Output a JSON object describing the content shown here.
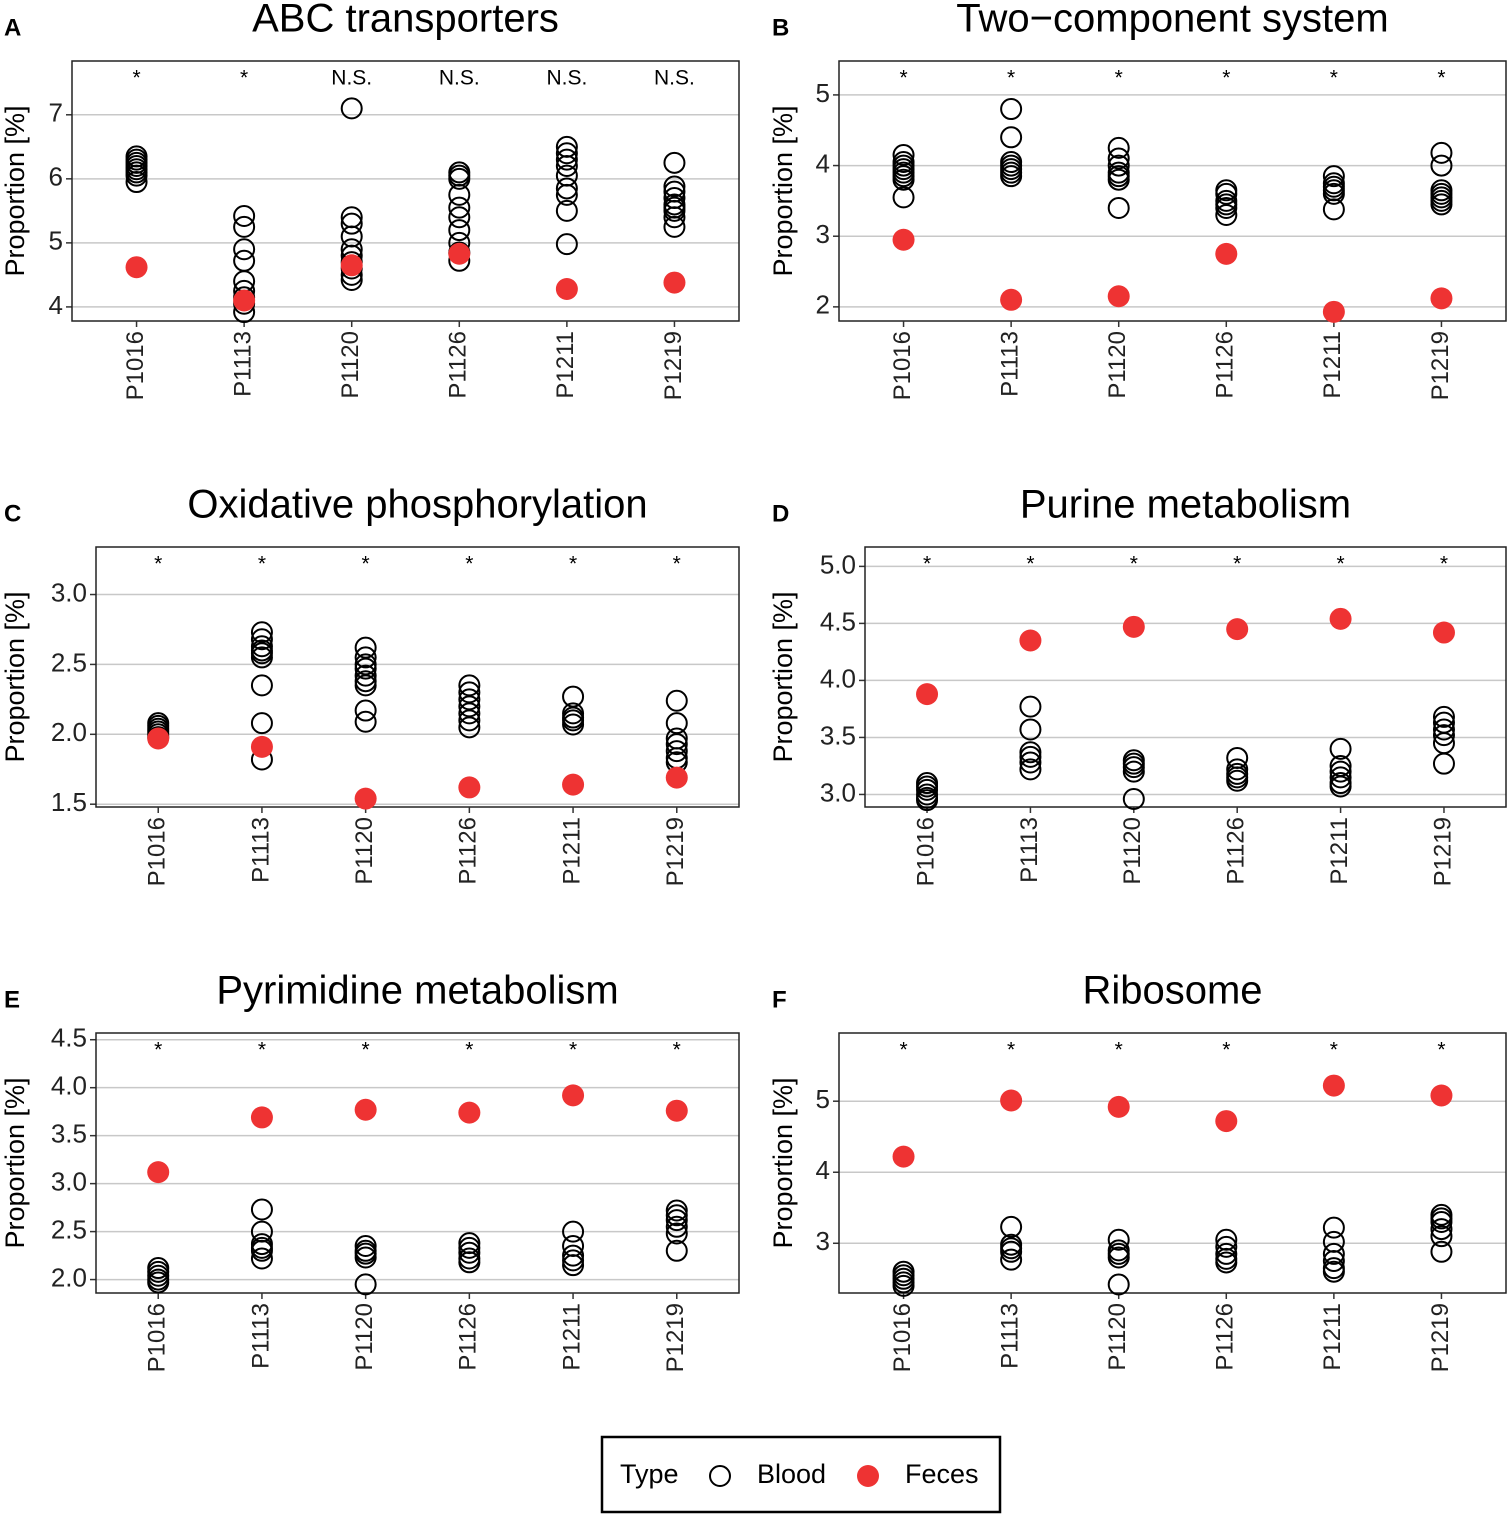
{
  "chart_data": [
    {
      "type": "scatter",
      "panel": "A",
      "title": "ABC transporters",
      "ylabel": "Proportion [%]",
      "categories": [
        "P1016",
        "P1113",
        "P1120",
        "P1126",
        "P1211",
        "P1219"
      ],
      "annotations": [
        "*",
        "*",
        "N.S.",
        "N.S.",
        "N.S.",
        "N.S."
      ],
      "series": [
        {
          "name": "Blood",
          "color": "#000000",
          "marker": "open",
          "values": [
            [
              6.35,
              6.3,
              6.25,
              6.2,
              6.15,
              6.1,
              6.05,
              5.95
            ],
            [
              5.42,
              5.25,
              4.9,
              4.72,
              4.4,
              4.25,
              4.15,
              4.05,
              3.92
            ],
            [
              7.1,
              5.4,
              5.3,
              5.1,
              4.9,
              4.8,
              4.7,
              4.6,
              4.5,
              4.42
            ],
            [
              6.1,
              6.05,
              6.0,
              5.75,
              5.55,
              5.4,
              5.2,
              5.0,
              4.85,
              4.72
            ],
            [
              6.5,
              6.4,
              6.3,
              6.2,
              6.05,
              5.85,
              5.75,
              5.5,
              4.98
            ],
            [
              6.25,
              5.88,
              5.8,
              5.7,
              5.6,
              5.55,
              5.5,
              5.4,
              5.25
            ]
          ]
        },
        {
          "name": "Feces",
          "color": "#ee3333",
          "marker": "filled",
          "values": [
            4.62,
            4.1,
            4.65,
            4.83,
            4.28,
            4.38
          ]
        }
      ],
      "ylim": [
        3.78,
        7.84
      ],
      "yticks": [
        4,
        5,
        6,
        7
      ],
      "grid": true
    },
    {
      "type": "scatter",
      "panel": "B",
      "title": "Two−component system",
      "ylabel": "Proportion [%]",
      "categories": [
        "P1016",
        "P1113",
        "P1120",
        "P1126",
        "P1211",
        "P1219"
      ],
      "annotations": [
        "*",
        "*",
        "*",
        "*",
        "*",
        "*"
      ],
      "series": [
        {
          "name": "Blood",
          "color": "#000000",
          "marker": "open",
          "values": [
            [
              4.15,
              4.05,
              4.0,
              3.95,
              3.9,
              3.85,
              3.8,
              3.55
            ],
            [
              4.8,
              4.4,
              4.05,
              4.0,
              3.95,
              3.9,
              3.85
            ],
            [
              4.25,
              4.1,
              4.0,
              3.9,
              3.85,
              3.8,
              3.4
            ],
            [
              3.65,
              3.6,
              3.5,
              3.45,
              3.4,
              3.3
            ],
            [
              3.85,
              3.75,
              3.7,
              3.65,
              3.6,
              3.38
            ],
            [
              4.18,
              4.0,
              3.65,
              3.6,
              3.55,
              3.5,
              3.45
            ]
          ]
        },
        {
          "name": "Feces",
          "color": "#ee3333",
          "marker": "filled",
          "values": [
            2.95,
            2.1,
            2.15,
            2.75,
            1.93,
            2.12
          ]
        }
      ],
      "ylim": [
        1.8,
        5.48
      ],
      "yticks": [
        2,
        3,
        4,
        5
      ],
      "grid": true
    },
    {
      "type": "scatter",
      "panel": "C",
      "title": "Oxidative phosphorylation",
      "ylabel": "Proportion [%]",
      "categories": [
        "P1016",
        "P1113",
        "P1120",
        "P1126",
        "P1211",
        "P1219"
      ],
      "annotations": [
        "*",
        "*",
        "*",
        "*",
        "*",
        "*"
      ],
      "series": [
        {
          "name": "Blood",
          "color": "#000000",
          "marker": "open",
          "values": [
            [
              2.08,
              2.06,
              2.04,
              2.02,
              2.0,
              1.98
            ],
            [
              2.73,
              2.68,
              2.63,
              2.6,
              2.58,
              2.55,
              2.35,
              2.08,
              1.82
            ],
            [
              2.62,
              2.55,
              2.5,
              2.47,
              2.42,
              2.38,
              2.35,
              2.17,
              2.09
            ],
            [
              2.35,
              2.3,
              2.25,
              2.2,
              2.15,
              2.1,
              2.05
            ],
            [
              2.27,
              2.15,
              2.12,
              2.1,
              2.07
            ],
            [
              2.24,
              2.08,
              1.97,
              1.93,
              1.88,
              1.83,
              1.8
            ]
          ]
        },
        {
          "name": "Feces",
          "color": "#ee3333",
          "marker": "filled",
          "values": [
            1.97,
            1.91,
            1.54,
            1.62,
            1.64,
            1.69
          ]
        }
      ],
      "ylim": [
        1.48,
        3.34
      ],
      "yticks": [
        {
          "value": 1.5,
          "label": "1.5"
        },
        {
          "value": 2,
          "label": "2.0"
        },
        2.5,
        {
          "value": 3,
          "label": "3.0"
        }
      ],
      "grid": true
    },
    {
      "type": "scatter",
      "panel": "D",
      "title": "Purine metabolism",
      "ylabel": "Proportion [%]",
      "categories": [
        "P1016",
        "P1113",
        "P1120",
        "P1126",
        "P1211",
        "P1219"
      ],
      "annotations": [
        "*",
        "*",
        "*",
        "*",
        "*",
        "*"
      ],
      "series": [
        {
          "name": "Blood",
          "color": "#000000",
          "marker": "open",
          "values": [
            [
              3.1,
              3.07,
              3.04,
              3.0,
              2.97,
              2.95
            ],
            [
              3.77,
              3.57,
              3.37,
              3.33,
              3.28,
              3.22
            ],
            [
              3.3,
              3.27,
              3.24,
              3.2,
              2.96
            ],
            [
              3.32,
              3.22,
              3.18,
              3.15,
              3.12
            ],
            [
              3.4,
              3.25,
              3.2,
              3.15,
              3.1,
              3.07
            ],
            [
              3.68,
              3.63,
              3.57,
              3.52,
              3.45,
              3.27
            ]
          ]
        },
        {
          "name": "Feces",
          "color": "#ee3333",
          "marker": "filled",
          "values": [
            3.88,
            4.35,
            4.47,
            4.45,
            4.54,
            4.42
          ]
        }
      ],
      "ylim": [
        2.89,
        5.17
      ],
      "yticks": [
        {
          "value": 3,
          "label": "3.0"
        },
        3.5,
        {
          "value": 4,
          "label": "4.0"
        },
        4.5,
        {
          "value": 5,
          "label": "5.0"
        }
      ],
      "grid": true
    },
    {
      "type": "scatter",
      "panel": "E",
      "title": "Pyrimidine metabolism",
      "ylabel": "Proportion [%]",
      "categories": [
        "P1016",
        "P1113",
        "P1120",
        "P1126",
        "P1211",
        "P1219"
      ],
      "annotations": [
        "*",
        "*",
        "*",
        "*",
        "*",
        "*"
      ],
      "series": [
        {
          "name": "Blood",
          "color": "#000000",
          "marker": "open",
          "values": [
            [
              2.12,
              2.08,
              2.04,
              2.0,
              1.97
            ],
            [
              2.73,
              2.5,
              2.37,
              2.33,
              2.3,
              2.22
            ],
            [
              2.35,
              2.3,
              2.27,
              2.23,
              1.95
            ],
            [
              2.38,
              2.33,
              2.28,
              2.22,
              2.18
            ],
            [
              2.5,
              2.35,
              2.25,
              2.2,
              2.15
            ],
            [
              2.72,
              2.67,
              2.62,
              2.55,
              2.48,
              2.3
            ]
          ]
        },
        {
          "name": "Feces",
          "color": "#ee3333",
          "marker": "filled",
          "values": [
            3.12,
            3.69,
            3.77,
            3.74,
            3.92,
            3.76
          ]
        }
      ],
      "ylim": [
        1.86,
        4.57
      ],
      "yticks": [
        {
          "value": 2,
          "label": "2.0"
        },
        2.5,
        {
          "value": 3,
          "label": "3.0"
        },
        3.5,
        {
          "value": 4,
          "label": "4.0"
        },
        4.5
      ],
      "grid": true
    },
    {
      "type": "scatter",
      "panel": "F",
      "title": "Ribosome",
      "ylabel": "Proportion [%]",
      "categories": [
        "P1016",
        "P1113",
        "P1120",
        "P1126",
        "P1211",
        "P1219"
      ],
      "annotations": [
        "*",
        "*",
        "*",
        "*",
        "*",
        "*"
      ],
      "series": [
        {
          "name": "Blood",
          "color": "#000000",
          "marker": "open",
          "values": [
            [
              2.6,
              2.55,
              2.5,
              2.45,
              2.4
            ],
            [
              3.23,
              2.98,
              2.93,
              2.88,
              2.77
            ],
            [
              3.05,
              2.9,
              2.85,
              2.8,
              2.42
            ],
            [
              3.05,
              2.95,
              2.85,
              2.78,
              2.73
            ],
            [
              3.22,
              3.02,
              2.85,
              2.75,
              2.65,
              2.6
            ],
            [
              3.4,
              3.35,
              3.3,
              3.2,
              3.1,
              2.88
            ]
          ]
        },
        {
          "name": "Feces",
          "color": "#ee3333",
          "marker": "filled",
          "values": [
            4.22,
            5.01,
            4.92,
            4.72,
            5.22,
            5.08
          ]
        }
      ],
      "ylim": [
        2.3,
        5.96
      ],
      "yticks": [
        3,
        4,
        5
      ],
      "grid": true
    }
  ],
  "legend": {
    "title": "Type",
    "position": "bottom"
  }
}
